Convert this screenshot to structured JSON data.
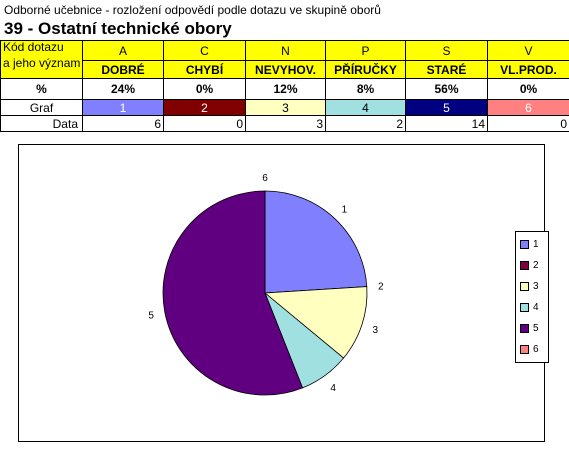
{
  "header": {
    "subtitle": "Odborné učebnice - rozložení odpovědí podle dotazu ve skupině oborů",
    "title": "39 - Ostatní technické obory"
  },
  "table": {
    "code_label_1": "Kód dotazu",
    "code_label_2": "a jeho význam",
    "percent_label": "%",
    "graf_label": "Graf",
    "data_label": "Data",
    "columns": [
      {
        "letter": "A",
        "name": "DOBRÉ",
        "percent": "24%",
        "graf": "1",
        "data": "6"
      },
      {
        "letter": "C",
        "name": "CHYBÍ",
        "percent": "0%",
        "graf": "2",
        "data": "0"
      },
      {
        "letter": "N",
        "name": "NEVYHOV.",
        "percent": "12%",
        "graf": "3",
        "data": "3"
      },
      {
        "letter": "P",
        "name": "PŘÍRUČKY",
        "percent": "8%",
        "graf": "4",
        "data": "2"
      },
      {
        "letter": "S",
        "name": "STARÉ",
        "percent": "56%",
        "graf": "5",
        "data": "14"
      },
      {
        "letter": "V",
        "name": "VL.PROD.",
        "percent": "0%",
        "graf": "6",
        "data": "0"
      }
    ]
  },
  "chart_data": {
    "type": "pie",
    "categories": [
      "1",
      "2",
      "3",
      "4",
      "5",
      "6"
    ],
    "values": [
      6,
      0,
      3,
      2,
      14,
      0
    ],
    "colors": [
      "#8080ff",
      "#800040",
      "#ffffc0",
      "#a0e0e0",
      "#600080",
      "#ff8080"
    ],
    "legend": [
      "1",
      "2",
      "3",
      "4",
      "5",
      "6"
    ],
    "legend_position": "right"
  }
}
